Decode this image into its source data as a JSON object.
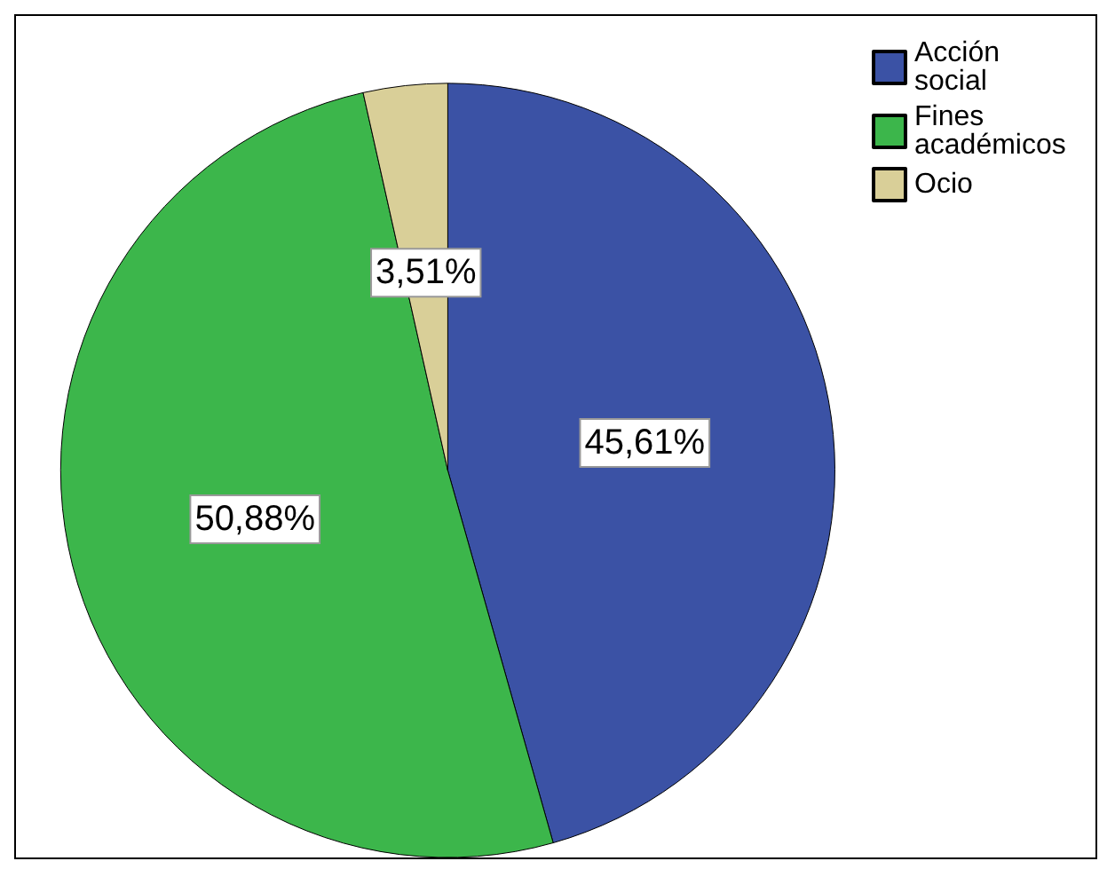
{
  "chart_data": {
    "type": "pie",
    "categories": [
      "Acción social",
      "Fines académicos",
      "Ocio"
    ],
    "values": [
      45.61,
      50.88,
      3.51
    ],
    "colors": [
      "#3b52a5",
      "#3cb64b",
      "#d9cf98"
    ],
    "value_labels": [
      "45,61%",
      "50,88%",
      "3,51%"
    ],
    "legend": "top right"
  }
}
